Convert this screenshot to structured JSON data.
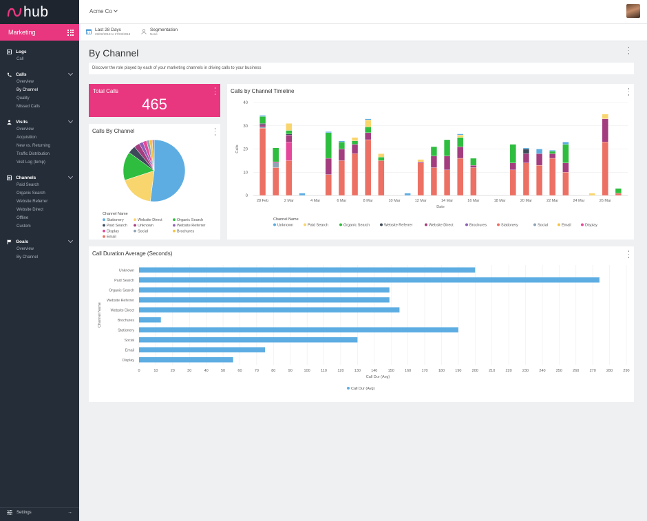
{
  "app": {
    "logo_text": "hub",
    "section": "Marketing"
  },
  "sidebar": {
    "sections": [
      {
        "label": "Logs",
        "icon": "book-icon",
        "items": [
          "Call"
        ],
        "active": -1,
        "chevron": false
      },
      {
        "label": "Calls",
        "icon": "phone-icon",
        "items": [
          "Overview",
          "By Channel",
          "Quality",
          "Missed Calls"
        ],
        "active": 1,
        "chevron": true
      },
      {
        "label": "Visits",
        "icon": "person-icon",
        "items": [
          "Overview",
          "Acquisition",
          "New vs. Returning",
          "Traffic Distribution",
          "Visit Log (temp)"
        ],
        "active": -1,
        "chevron": true
      },
      {
        "label": "Channels",
        "icon": "list-icon",
        "items": [
          "Paid Search",
          "Organic Search",
          "Website Referrer",
          "Website Direct",
          "Offline",
          "Custom"
        ],
        "active": -1,
        "chevron": true
      },
      {
        "label": "Goals",
        "icon": "flag-icon",
        "items": [
          "Overview",
          "By Channel"
        ],
        "active": -1,
        "chevron": true
      }
    ],
    "settings_label": "Settings"
  },
  "topbar": {
    "company": "Acme Co"
  },
  "filters": {
    "date_label": "Last 28 Days",
    "date_range": "28/02/2018 to 27/03/2018",
    "segmentation_label": "Segmentation",
    "segmentation_value": "None"
  },
  "page": {
    "title": "By Channel",
    "description": "Discover the role played by each of your marketing channels in driving calls to your business"
  },
  "total_calls": {
    "label": "Total Calls",
    "value": "465"
  },
  "colors": {
    "Unknown": "#5dade2",
    "Paid Search": "#f9d56e",
    "Organic Search": "#2ebd3e",
    "Website Referrer": "#3d4a5a",
    "Website Direct": "#a33d7f",
    "Brochures": "#8e5fb5",
    "Stationery": "#ec7063",
    "Social": "#8fa3b5",
    "Email": "#f6c342",
    "Display": "#e5489a"
  },
  "chart_data": [
    {
      "id": "pie",
      "type": "pie",
      "title": "Calls By Channel",
      "legend_title": "Channel Name",
      "legend": [
        "Stationery",
        "Website Direct",
        "Organic Search",
        "Paid Search",
        "Unknown",
        "Website Referrer",
        "Display",
        "Social",
        "Brochures",
        "Email"
      ],
      "legend_colors": [
        "#5dade2",
        "#f9d56e",
        "#2ebd3e",
        "#3d4a5a",
        "#a33d7f",
        "#8e5fb5",
        "#e5489a",
        "#8fa3b5",
        "#f6c342",
        "#ec7063"
      ],
      "slices": [
        {
          "color": "#5dade2",
          "value": 52
        },
        {
          "color": "#f9d56e",
          "value": 18
        },
        {
          "color": "#2ebd3e",
          "value": 15
        },
        {
          "color": "#3d4a5a",
          "value": 4
        },
        {
          "color": "#a33d7f",
          "value": 3
        },
        {
          "color": "#8e5fb5",
          "value": 2
        },
        {
          "color": "#e5489a",
          "value": 2
        },
        {
          "color": "#8fa3b5",
          "value": 1.5
        },
        {
          "color": "#f6c342",
          "value": 1.5
        },
        {
          "color": "#ec7063",
          "value": 1
        }
      ]
    },
    {
      "id": "timeline",
      "type": "bar",
      "stacked": true,
      "title": "Calls by Channel Timeline",
      "xlabel": "Date",
      "ylabel": "Calls",
      "ylim": [
        0,
        40
      ],
      "yticks": [
        0,
        10,
        20,
        30,
        40
      ],
      "x_tick_labels": [
        "28 Feb",
        "2 Mar",
        "4 Mar",
        "6 Mar",
        "8 Mar",
        "10 Mar",
        "12 Mar",
        "14 Mar",
        "16 Mar",
        "18 Mar",
        "20 Mar",
        "22 Mar",
        "24 Mar",
        "26 Mar"
      ],
      "legend_title": "Channel Name",
      "legend": [
        "Unknown",
        "Paid Search",
        "Organic Search",
        "Website Referrer",
        "Website Direct",
        "Brochures",
        "Stationery",
        "Social",
        "Email",
        "Display"
      ],
      "series_order": [
        "Stationery",
        "Display",
        "Social",
        "Brochures",
        "Website Direct",
        "Website Referrer",
        "Organic Search",
        "Paid Search",
        "Email",
        "Unknown"
      ],
      "days": [
        {
          "Stationery": 29,
          "Social": 0.5,
          "Website Direct": 1,
          "Website Referrer": 0.5,
          "Organic Search": 3,
          "Unknown": 0.5
        },
        {
          "Stationery": 12,
          "Social": 2,
          "Website Direct": 0.5,
          "Organic Search": 6
        },
        {
          "Display": 8,
          "Stationery": 15,
          "Website Direct": 3,
          "Website Referrer": 0.5,
          "Organic Search": 1.5,
          "Paid Search": 3
        },
        {
          "Unknown": 1
        },
        {},
        {
          "Stationery": 9,
          "Website Direct": 7,
          "Organic Search": 11,
          "Unknown": 0.5
        },
        {
          "Stationery": 15,
          "Website Direct": 5,
          "Organic Search": 3,
          "Unknown": 0.5
        },
        {
          "Stationery": 18,
          "Website Direct": 4,
          "Organic Search": 1.5,
          "Paid Search": 1.5
        },
        {
          "Stationery": 24,
          "Website Direct": 3,
          "Organic Search": 2.5,
          "Paid Search": 3,
          "Unknown": 0.5
        },
        {
          "Stationery": 15,
          "Organic Search": 1.5,
          "Paid Search": 1.5
        },
        {},
        {
          "Unknown": 1
        },
        {
          "Stationery": 14,
          "Website Direct": 0.5,
          "Paid Search": 1
        },
        {
          "Stationery": 12,
          "Website Direct": 5,
          "Organic Search": 4
        },
        {
          "Stationery": 11,
          "Website Direct": 6,
          "Organic Search": 7
        },
        {
          "Stationery": 16,
          "Website Direct": 5,
          "Organic Search": 4,
          "Paid Search": 1,
          "Unknown": 0.5
        },
        {
          "Stationery": 12,
          "Website Direct": 1,
          "Organic Search": 3
        },
        {},
        {},
        {
          "Stationery": 11,
          "Website Direct": 3,
          "Organic Search": 8
        },
        {
          "Stationery": 14,
          "Website Direct": 4,
          "Website Referrer": 2,
          "Unknown": 0.5
        },
        {
          "Stationery": 13,
          "Website Direct": 5,
          "Unknown": 2
        },
        {
          "Stationery": 16,
          "Website Direct": 2,
          "Organic Search": 1,
          "Unknown": 0.5
        },
        {
          "Stationery": 10,
          "Website Direct": 4,
          "Organic Search": 8,
          "Unknown": 1
        },
        {},
        {
          "Paid Search": 1
        },
        {
          "Stationery": 23,
          "Website Direct": 10,
          "Paid Search": 2
        },
        {
          "Stationery": 1,
          "Organic Search": 2
        }
      ]
    },
    {
      "id": "duration",
      "type": "bar",
      "orientation": "horizontal",
      "title": "Call Duration Average (Seconds)",
      "xlabel": "Call Dur (Avg)",
      "ylabel": "Channel Name",
      "xlim": [
        0,
        290
      ],
      "xtick_step": 10,
      "legend": [
        "Call Dur (Avg)"
      ],
      "categories": [
        "Unknown",
        "Paid Search",
        "Organic Search",
        "Website Referrer",
        "Website Direct",
        "Brochures",
        "Stationery",
        "Social",
        "Email",
        "Display"
      ],
      "values": [
        200,
        274,
        149,
        149,
        155,
        13,
        190,
        130,
        75,
        56
      ],
      "color": "#5dade2"
    }
  ]
}
